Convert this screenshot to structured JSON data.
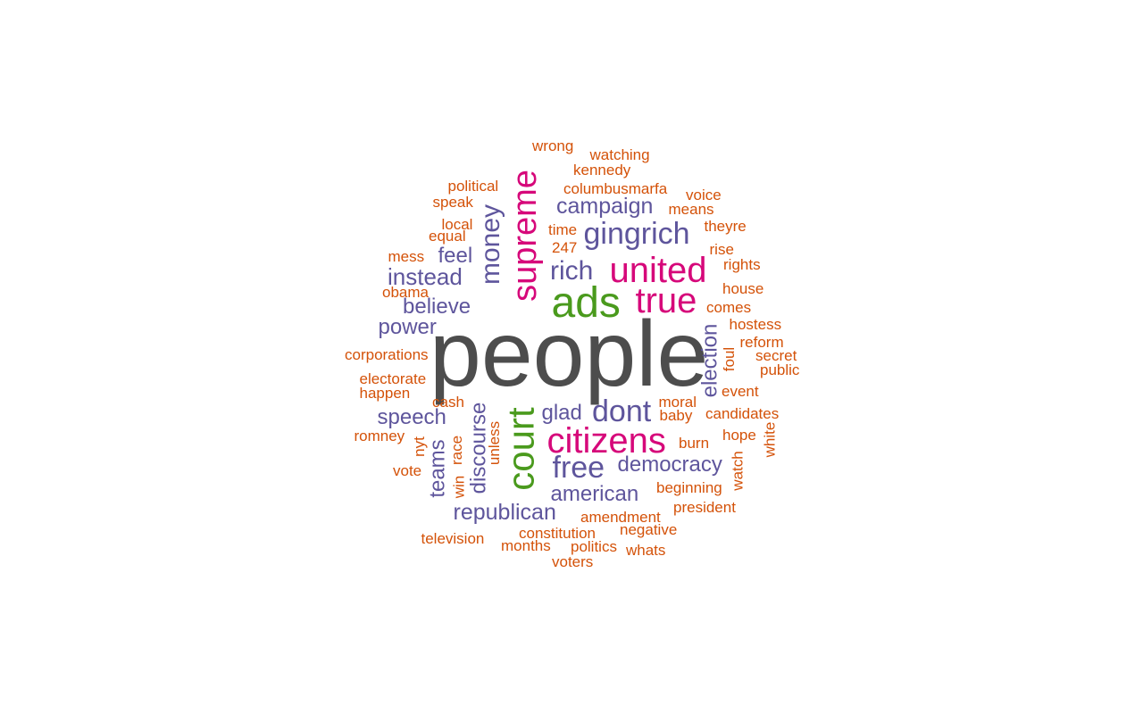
{
  "colors": {
    "top": "#4d4d4d",
    "second": "#4a9a1d",
    "third": "#d6087a",
    "fourth": "#5e559c",
    "fifth": "#d45209"
  },
  "words": [
    {
      "text": "people",
      "tier": "top"
    },
    {
      "text": "ads",
      "tier": "second"
    },
    {
      "text": "court",
      "tier": "second"
    },
    {
      "text": "supreme",
      "tier": "third"
    },
    {
      "text": "united",
      "tier": "third"
    },
    {
      "text": "true",
      "tier": "third"
    },
    {
      "text": "citizens",
      "tier": "third"
    },
    {
      "text": "gingrich",
      "tier": "fourth"
    },
    {
      "text": "rich",
      "tier": "fourth"
    },
    {
      "text": "campaign",
      "tier": "fourth"
    },
    {
      "text": "money",
      "tier": "fourth"
    },
    {
      "text": "feel",
      "tier": "fourth"
    },
    {
      "text": "instead",
      "tier": "fourth"
    },
    {
      "text": "believe",
      "tier": "fourth"
    },
    {
      "text": "power",
      "tier": "fourth"
    },
    {
      "text": "speech",
      "tier": "fourth"
    },
    {
      "text": "glad",
      "tier": "fourth"
    },
    {
      "text": "dont",
      "tier": "fourth"
    },
    {
      "text": "free",
      "tier": "fourth"
    },
    {
      "text": "democracy",
      "tier": "fourth"
    },
    {
      "text": "american",
      "tier": "fourth"
    },
    {
      "text": "republican",
      "tier": "fourth"
    },
    {
      "text": "discourse",
      "tier": "fourth"
    },
    {
      "text": "teams",
      "tier": "fourth"
    },
    {
      "text": "election",
      "tier": "fourth"
    },
    {
      "text": "wrong",
      "tier": "fifth"
    },
    {
      "text": "watching",
      "tier": "fifth"
    },
    {
      "text": "kennedy",
      "tier": "fifth"
    },
    {
      "text": "political",
      "tier": "fifth"
    },
    {
      "text": "columbusmarfa",
      "tier": "fifth"
    },
    {
      "text": "voice",
      "tier": "fifth"
    },
    {
      "text": "speak",
      "tier": "fifth"
    },
    {
      "text": "means",
      "tier": "fifth"
    },
    {
      "text": "local",
      "tier": "fifth"
    },
    {
      "text": "time",
      "tier": "fifth"
    },
    {
      "text": "theyre",
      "tier": "fifth"
    },
    {
      "text": "equal",
      "tier": "fifth"
    },
    {
      "text": "247",
      "tier": "fifth"
    },
    {
      "text": "rise",
      "tier": "fifth"
    },
    {
      "text": "mess",
      "tier": "fifth"
    },
    {
      "text": "rights",
      "tier": "fifth"
    },
    {
      "text": "obama",
      "tier": "fifth"
    },
    {
      "text": "house",
      "tier": "fifth"
    },
    {
      "text": "comes",
      "tier": "fifth"
    },
    {
      "text": "hostess",
      "tier": "fifth"
    },
    {
      "text": "reform",
      "tier": "fifth"
    },
    {
      "text": "corporations",
      "tier": "fifth"
    },
    {
      "text": "secret",
      "tier": "fifth"
    },
    {
      "text": "foul",
      "tier": "fifth"
    },
    {
      "text": "public",
      "tier": "fifth"
    },
    {
      "text": "electorate",
      "tier": "fifth"
    },
    {
      "text": "happen",
      "tier": "fifth"
    },
    {
      "text": "event",
      "tier": "fifth"
    },
    {
      "text": "cash",
      "tier": "fifth"
    },
    {
      "text": "moral",
      "tier": "fifth"
    },
    {
      "text": "baby",
      "tier": "fifth"
    },
    {
      "text": "candidates",
      "tier": "fifth"
    },
    {
      "text": "romney",
      "tier": "fifth"
    },
    {
      "text": "nyt",
      "tier": "fifth"
    },
    {
      "text": "unless",
      "tier": "fifth"
    },
    {
      "text": "race",
      "tier": "fifth"
    },
    {
      "text": "burn",
      "tier": "fifth"
    },
    {
      "text": "hope",
      "tier": "fifth"
    },
    {
      "text": "white",
      "tier": "fifth"
    },
    {
      "text": "vote",
      "tier": "fifth"
    },
    {
      "text": "win",
      "tier": "fifth"
    },
    {
      "text": "watch",
      "tier": "fifth"
    },
    {
      "text": "beginning",
      "tier": "fifth"
    },
    {
      "text": "president",
      "tier": "fifth"
    },
    {
      "text": "amendment",
      "tier": "fifth"
    },
    {
      "text": "negative",
      "tier": "fifth"
    },
    {
      "text": "constitution",
      "tier": "fifth"
    },
    {
      "text": "television",
      "tier": "fifth"
    },
    {
      "text": "months",
      "tier": "fifth"
    },
    {
      "text": "politics",
      "tier": "fifth"
    },
    {
      "text": "whats",
      "tier": "fifth"
    },
    {
      "text": "voters",
      "tier": "fifth"
    }
  ]
}
